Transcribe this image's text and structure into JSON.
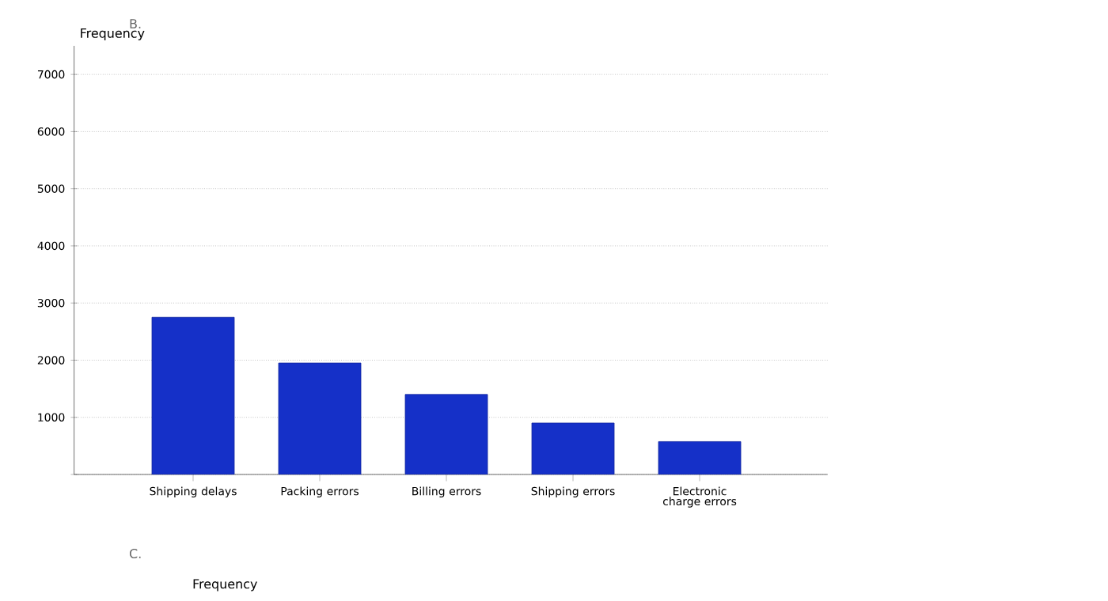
{
  "chart_data": {
    "type": "bar",
    "title": "B.",
    "ylabel": "Frequency",
    "categories": [
      "Shipping delays",
      "Packing errors",
      "Billing errors",
      "Shipping errors",
      "Electronic charge errors"
    ],
    "values": [
      2750,
      1950,
      1400,
      900,
      575
    ],
    "color": "#1530c8",
    "ylim": [
      0,
      7500
    ],
    "yticks": [
      {
        "value": 0,
        "label": null
      },
      1000,
      2000,
      3000,
      4000,
      5000,
      6000,
      7000
    ],
    "grid": "y",
    "annotations": [
      "C.",
      "Frequency"
    ]
  }
}
